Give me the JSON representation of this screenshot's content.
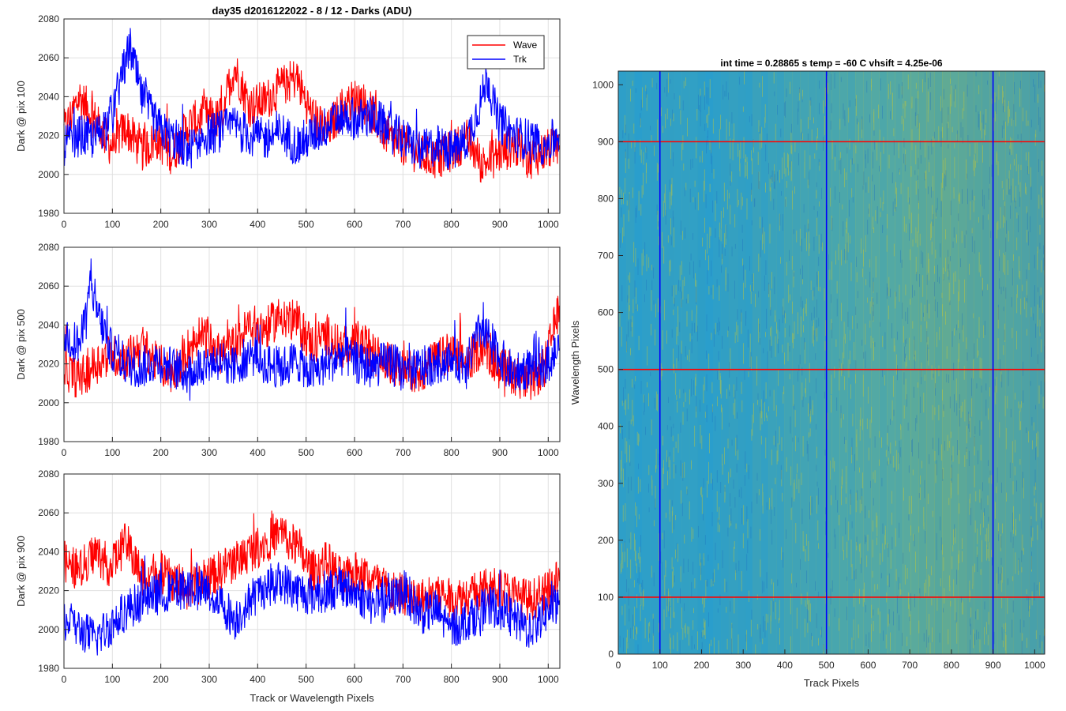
{
  "figure": {
    "title": "day35 d2016122022 - 8 / 12 - Darks (ADU)",
    "colors": {
      "wave": "#ff0000",
      "trk": "#0000ff",
      "heat_base": "#2a9ecc",
      "heat_light": "#c8c832",
      "heat_dark": "#1f6fbf",
      "grid": "#e0e0e0",
      "axis": "#262626"
    }
  },
  "chart_data": [
    {
      "type": "line",
      "ylabel": "Dark @ pix 100",
      "xlabel": "",
      "xlim": [
        0,
        1024
      ],
      "ylim": [
        1980,
        2080
      ],
      "yticks": [
        1980,
        2000,
        2020,
        2040,
        2060,
        2080
      ],
      "xticks": [
        0,
        100,
        200,
        300,
        400,
        500,
        600,
        700,
        800,
        900,
        1000
      ],
      "grid": true,
      "legend": {
        "location": "top-right",
        "entries": [
          "Wave",
          "Trk"
        ]
      },
      "series": [
        {
          "name": "Wave",
          "color": "#ff0000",
          "x": [
            0,
            32,
            64,
            96,
            128,
            160,
            192,
            224,
            256,
            288,
            320,
            352,
            384,
            416,
            448,
            480,
            512,
            544,
            576,
            608,
            640,
            672,
            704,
            736,
            768,
            800,
            832,
            864,
            896,
            928,
            960,
            992,
            1023
          ],
          "y": [
            2022,
            2040,
            2028,
            2015,
            2024,
            2012,
            2018,
            2010,
            2025,
            2030,
            2028,
            2055,
            2035,
            2038,
            2045,
            2050,
            2030,
            2022,
            2035,
            2040,
            2030,
            2018,
            2015,
            2010,
            2008,
            2012,
            2018,
            2005,
            2010,
            2015,
            2008,
            2012,
            2015
          ]
        },
        {
          "name": "Trk",
          "color": "#0000ff",
          "x": [
            0,
            32,
            64,
            96,
            128,
            136,
            160,
            192,
            224,
            256,
            288,
            320,
            352,
            384,
            416,
            448,
            480,
            512,
            544,
            576,
            608,
            640,
            672,
            704,
            736,
            768,
            800,
            832,
            864,
            874,
            896,
            928,
            960,
            992,
            1023
          ],
          "y": [
            2015,
            2020,
            2018,
            2030,
            2058,
            2066,
            2040,
            2025,
            2018,
            2012,
            2020,
            2022,
            2025,
            2020,
            2018,
            2022,
            2015,
            2020,
            2025,
            2030,
            2028,
            2030,
            2022,
            2018,
            2012,
            2015,
            2012,
            2018,
            2040,
            2050,
            2028,
            2020,
            2018,
            2015,
            2020
          ]
        }
      ]
    },
    {
      "type": "line",
      "ylabel": "Dark @ pix 500",
      "xlabel": "",
      "xlim": [
        0,
        1024
      ],
      "ylim": [
        1980,
        2080
      ],
      "yticks": [
        1980,
        2000,
        2020,
        2040,
        2060,
        2080
      ],
      "xticks": [
        0,
        100,
        200,
        300,
        400,
        500,
        600,
        700,
        800,
        900,
        1000
      ],
      "grid": true,
      "series": [
        {
          "name": "Wave",
          "color": "#ff0000",
          "x": [
            0,
            32,
            64,
            96,
            128,
            160,
            192,
            224,
            256,
            288,
            320,
            352,
            384,
            416,
            448,
            480,
            512,
            544,
            576,
            608,
            640,
            672,
            704,
            736,
            768,
            800,
            832,
            864,
            896,
            928,
            960,
            992,
            1023
          ],
          "y": [
            2018,
            2012,
            2020,
            2025,
            2022,
            2030,
            2020,
            2015,
            2028,
            2035,
            2025,
            2030,
            2040,
            2038,
            2045,
            2042,
            2030,
            2035,
            2028,
            2032,
            2025,
            2020,
            2018,
            2015,
            2022,
            2025,
            2020,
            2030,
            2018,
            2015,
            2010,
            2018,
            2050
          ]
        },
        {
          "name": "Trk",
          "color": "#0000ff",
          "x": [
            0,
            32,
            48,
            55,
            64,
            96,
            128,
            160,
            192,
            224,
            256,
            288,
            320,
            352,
            384,
            416,
            448,
            480,
            512,
            544,
            576,
            608,
            640,
            672,
            704,
            736,
            768,
            800,
            832,
            864,
            896,
            928,
            960,
            992,
            1023
          ],
          "y": [
            2035,
            2030,
            2045,
            2068,
            2050,
            2028,
            2020,
            2018,
            2022,
            2018,
            2015,
            2020,
            2022,
            2018,
            2025,
            2020,
            2018,
            2022,
            2015,
            2020,
            2025,
            2020,
            2018,
            2022,
            2015,
            2018,
            2020,
            2022,
            2020,
            2040,
            2025,
            2015,
            2018,
            2020,
            2028
          ]
        }
      ]
    },
    {
      "type": "line",
      "ylabel": "Dark @ pix 900",
      "xlabel": "Track or Wavelength Pixels",
      "xlim": [
        0,
        1024
      ],
      "ylim": [
        1980,
        2080
      ],
      "yticks": [
        1980,
        2000,
        2020,
        2040,
        2060,
        2080
      ],
      "xticks": [
        0,
        100,
        200,
        300,
        400,
        500,
        600,
        700,
        800,
        900,
        1000
      ],
      "grid": true,
      "series": [
        {
          "name": "Wave",
          "color": "#ff0000",
          "x": [
            0,
            32,
            64,
            96,
            128,
            160,
            192,
            224,
            256,
            288,
            320,
            352,
            384,
            416,
            448,
            480,
            512,
            544,
            576,
            608,
            640,
            672,
            704,
            736,
            768,
            800,
            832,
            864,
            896,
            928,
            960,
            992,
            1023
          ],
          "y": [
            2035,
            2030,
            2040,
            2032,
            2045,
            2028,
            2030,
            2025,
            2020,
            2025,
            2030,
            2035,
            2040,
            2045,
            2050,
            2042,
            2030,
            2035,
            2025,
            2030,
            2025,
            2020,
            2018,
            2015,
            2020,
            2015,
            2018,
            2020,
            2022,
            2018,
            2015,
            2018,
            2025
          ]
        },
        {
          "name": "Trk",
          "color": "#0000ff",
          "x": [
            0,
            32,
            64,
            96,
            128,
            160,
            192,
            224,
            256,
            288,
            320,
            352,
            384,
            416,
            448,
            480,
            512,
            544,
            576,
            608,
            640,
            672,
            704,
            736,
            768,
            800,
            832,
            864,
            896,
            928,
            960,
            992,
            1023
          ],
          "y": [
            2005,
            2000,
            1995,
            2002,
            2010,
            2015,
            2018,
            2020,
            2022,
            2020,
            2015,
            2005,
            2015,
            2022,
            2025,
            2020,
            2018,
            2020,
            2022,
            2018,
            2012,
            2015,
            2020,
            2008,
            2010,
            2000,
            2005,
            2010,
            2012,
            2005,
            2000,
            2008,
            2015
          ]
        }
      ]
    },
    {
      "type": "heatmap",
      "title": "int time = 0.28865 s   temp = -60 C   vhsift = 4.25e-06",
      "xlabel": "Track Pixels",
      "ylabel": "Wavelength Pixels",
      "xlim": [
        0,
        1024
      ],
      "ylim": [
        0,
        1024
      ],
      "xticks": [
        0,
        100,
        200,
        300,
        400,
        500,
        600,
        700,
        800,
        900,
        1000
      ],
      "yticks": [
        0,
        100,
        200,
        300,
        400,
        500,
        600,
        700,
        800,
        900,
        1000
      ],
      "markers": {
        "vertical_lines_x": [
          100,
          500,
          900
        ],
        "vertical_color": "#0000ff",
        "horizontal_lines_y": [
          100,
          500,
          900
        ],
        "horizontal_color": "#ff0000"
      }
    }
  ]
}
